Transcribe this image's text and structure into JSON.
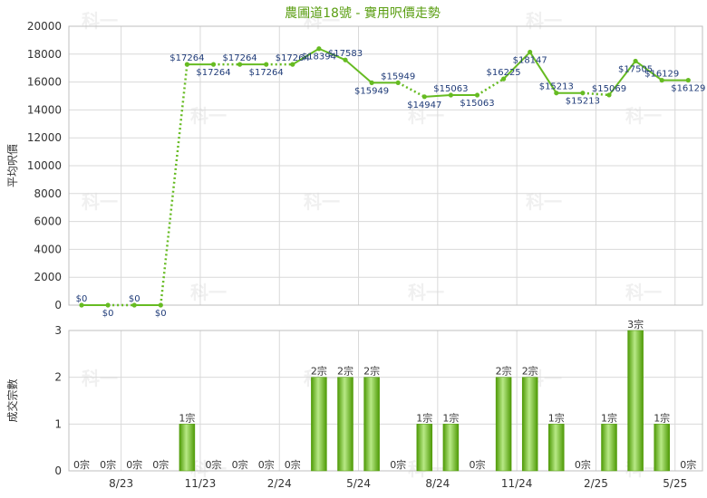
{
  "chart_data": {
    "title": "農圃道18號 - 實用呎價走勢",
    "watermark": "科一",
    "colors": {
      "line": "#66bb22",
      "bar_light": "#b8e986",
      "bar_dark": "#4e9a06",
      "grid": "#d9d9d9",
      "price_text": "#1f3b78",
      "title_text": "#5a9e12"
    },
    "x_ticks": [
      {
        "index": 1.5,
        "label": "8/23"
      },
      {
        "index": 4.5,
        "label": "11/23"
      },
      {
        "index": 7.5,
        "label": "2/24"
      },
      {
        "index": 10.5,
        "label": "5/24"
      },
      {
        "index": 13.5,
        "label": "8/24"
      },
      {
        "index": 16.5,
        "label": "11/24"
      },
      {
        "index": 19.5,
        "label": "2/25"
      },
      {
        "index": 22.5,
        "label": "5/25"
      }
    ],
    "price_chart": {
      "type": "line",
      "ylabel": "平均呎價",
      "ylim": [
        0,
        20000
      ],
      "yticks": [
        0,
        2000,
        4000,
        6000,
        8000,
        10000,
        12000,
        14000,
        16000,
        18000,
        20000
      ],
      "values": [
        0,
        0,
        0,
        0,
        17264,
        17264,
        17264,
        17264,
        17264,
        18394,
        17583,
        15949,
        15949,
        14947,
        15063,
        15063,
        16225,
        18147,
        15213,
        15213,
        15069,
        17505,
        16129,
        16129
      ],
      "labels": [
        "$0",
        "$0",
        "$0",
        "$0",
        "$17264",
        "$17264",
        "$17264",
        "$17264",
        "$17264",
        "$18394",
        "$17583",
        "$15949",
        "$15949",
        "$14947",
        "$15063",
        "$15063",
        "$16225",
        "$18147",
        "$15213",
        "$15213",
        "$15069",
        "$17505",
        "$16129",
        "$16129"
      ],
      "dotted": [
        false,
        true,
        false,
        true,
        false,
        true,
        false,
        true,
        false,
        false,
        false,
        false,
        true,
        false,
        false,
        true,
        false,
        false,
        false,
        true,
        false,
        false,
        false,
        true
      ]
    },
    "volume_chart": {
      "type": "bar",
      "ylabel": "成交宗數",
      "ylim": [
        0,
        3
      ],
      "yticks": [
        0,
        1,
        2,
        3
      ],
      "values": [
        0,
        0,
        0,
        0,
        1,
        0,
        0,
        0,
        0,
        2,
        2,
        2,
        0,
        1,
        1,
        0,
        2,
        2,
        1,
        0,
        1,
        3,
        1,
        0
      ],
      "labels": [
        "0宗",
        "0宗",
        "0宗",
        "0宗",
        "1宗",
        "0宗",
        "0宗",
        "0宗",
        "0宗",
        "2宗",
        "2宗",
        "2宗",
        "0宗",
        "1宗",
        "1宗",
        "0宗",
        "2宗",
        "2宗",
        "1宗",
        "0宗",
        "1宗",
        "3宗",
        "1宗",
        "0宗"
      ]
    }
  }
}
